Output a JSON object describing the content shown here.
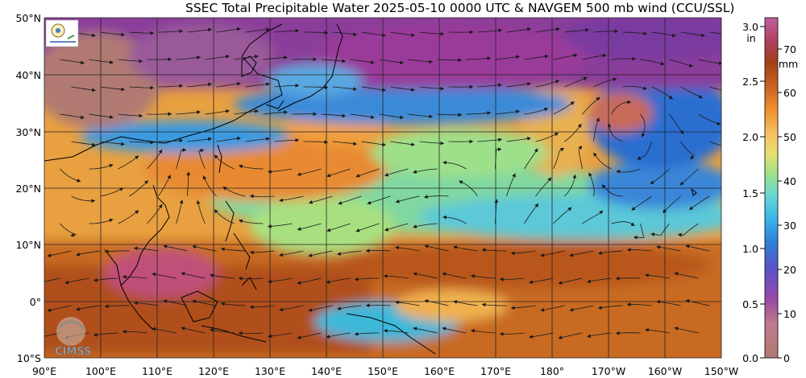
{
  "title": "SSEC Total Precipitable Water  2025-05-10 0000 UTC & NAVGEM 500 mb wind (CCU/SSL)",
  "map": {
    "lat_labels": [
      "50°N",
      "40°N",
      "30°N",
      "20°N",
      "10°N",
      "0°",
      "10°S"
    ],
    "lon_labels": [
      "90°E",
      "100°E",
      "110°E",
      "120°E",
      "130°E",
      "140°E",
      "150°E",
      "160°E",
      "170°E",
      "180°",
      "170°W",
      "160°W",
      "150°W"
    ],
    "watermark": "CIMSS"
  },
  "colorbar": {
    "inch_unit": "in",
    "mm_unit": "mm",
    "inch_ticks": [
      "0.0",
      "0.5",
      "1.0",
      "1.5",
      "2.0",
      "2.5",
      "3.0"
    ],
    "mm_ticks": [
      "0",
      "10",
      "20",
      "30",
      "40",
      "50",
      "60",
      "70"
    ]
  },
  "colors": {
    "very_dry": "#b07a72",
    "dry_magenta": "#8a3c9a",
    "blue": "#2e7fd6",
    "cyan": "#5fd0e0",
    "green": "#8fe08a",
    "yellow": "#f3d070",
    "orange": "#f0a030",
    "brown": "#a8501c",
    "land_outline": "#000000"
  }
}
